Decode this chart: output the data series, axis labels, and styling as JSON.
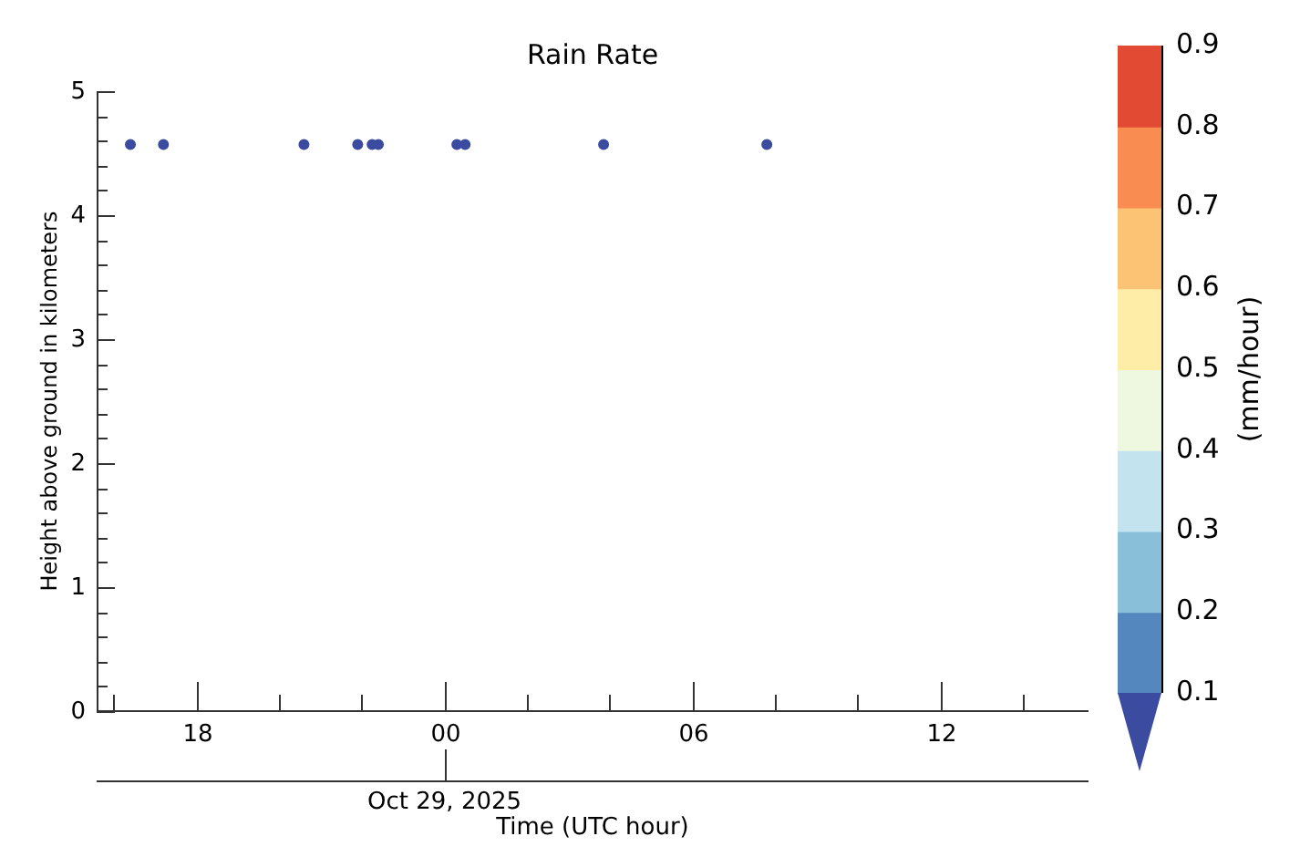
{
  "chart_data": {
    "type": "scatter",
    "title": "Rain Rate",
    "xlabel": "Time (UTC hour)",
    "ylabel": "Height above ground in kilometers",
    "clabel": "(mm/hour)",
    "annotations": [
      "Oct 29, 2025"
    ],
    "x": [
      "2025-10-28T16:24",
      "2025-10-28T17:12",
      "2025-10-28T20:36",
      "2025-10-28T21:54",
      "2025-10-28T22:15",
      "2025-10-28T22:24",
      "2025-10-29T00:18",
      "2025-10-29T00:30",
      "2025-10-29T03:51",
      "2025-10-29T07:48"
    ],
    "series": [
      {
        "color": "#3b4ba0",
        "values": [
          4.57,
          4.57,
          4.57,
          4.57,
          4.57,
          4.57,
          4.57,
          4.57,
          4.57,
          4.57
        ]
      }
    ],
    "xlim": [
      "2025-10-28T15:35",
      "2025-10-29T15:35"
    ],
    "ylim": [
      0,
      5
    ],
    "xticks": [
      {
        "value": "2025-10-28T16:00",
        "label": null
      },
      {
        "value": "2025-10-28T18:00",
        "label": "18"
      },
      {
        "value": "2025-10-28T20:00",
        "label": null
      },
      {
        "value": "2025-10-28T22:00",
        "label": null
      },
      {
        "value": "2025-10-29T00:00",
        "label": "00"
      },
      {
        "value": "2025-10-29T02:00",
        "label": null
      },
      {
        "value": "2025-10-29T04:00",
        "label": null
      },
      {
        "value": "2025-10-29T06:00",
        "label": "06"
      },
      {
        "value": "2025-10-29T08:00",
        "label": null
      },
      {
        "value": "2025-10-29T10:00",
        "label": null
      },
      {
        "value": "2025-10-29T12:00",
        "label": "12"
      },
      {
        "value": "2025-10-29T14:00",
        "label": null
      }
    ],
    "yticks": [
      0,
      {
        "value": 0.2,
        "label": null
      },
      {
        "value": 0.4,
        "label": null
      },
      {
        "value": 0.6,
        "label": null
      },
      {
        "value": 0.8,
        "label": null
      },
      1,
      {
        "value": 1.2,
        "label": null
      },
      {
        "value": 1.4,
        "label": null
      },
      {
        "value": 1.6,
        "label": null
      },
      {
        "value": 1.8,
        "label": null
      },
      2,
      {
        "value": 2.2,
        "label": null
      },
      {
        "value": 2.4,
        "label": null
      },
      {
        "value": 2.6,
        "label": null
      },
      {
        "value": 2.8,
        "label": null
      },
      3,
      {
        "value": 3.2,
        "label": null
      },
      {
        "value": 3.4,
        "label": null
      },
      {
        "value": 3.6,
        "label": null
      },
      {
        "value": 3.8,
        "label": null
      },
      4,
      {
        "value": 4.2,
        "label": null
      },
      {
        "value": 4.4,
        "label": null
      },
      {
        "value": 4.6,
        "label": null
      },
      {
        "value": 4.8,
        "label": null
      },
      5
    ],
    "clim": [
      0.1,
      0.9
    ],
    "cticks": [
      0.1,
      0.2,
      0.3,
      0.4,
      0.5,
      0.6,
      0.7,
      0.8,
      0.9
    ],
    "grid": false,
    "legend": false,
    "marker": "circle"
  }
}
